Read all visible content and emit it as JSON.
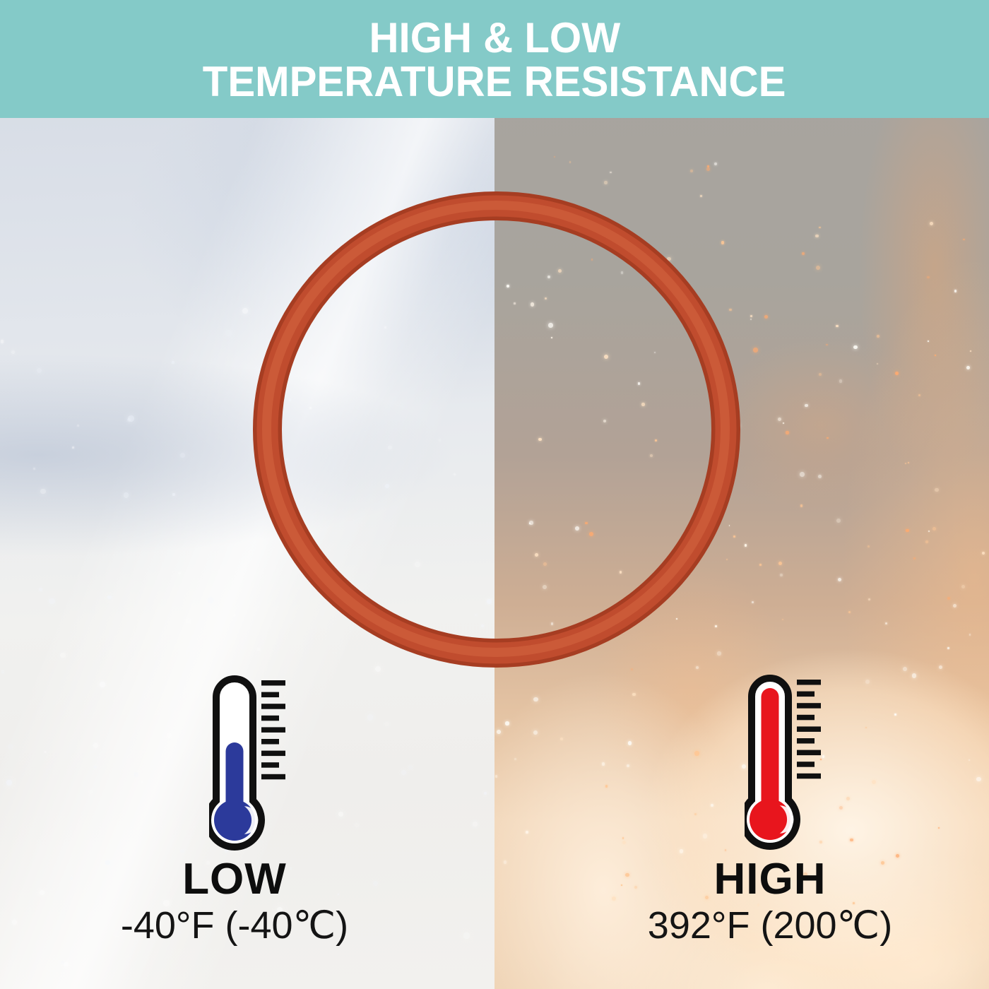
{
  "banner": {
    "line1": "HIGH & LOW",
    "line2": "TEMPERATURE RESISTANCE",
    "bg_color": "#84cac8",
    "text_color": "#ffffff"
  },
  "low_section": {
    "label": "LOW",
    "temperature": "-40°F (-40℃)",
    "mercury_color": "#2c3a9b",
    "icon": "thermometer-low-icon"
  },
  "high_section": {
    "label": "HIGH",
    "temperature": "392°F (200℃)",
    "mercury_color": "#e8151d",
    "icon": "thermometer-high-icon"
  },
  "ring": {
    "name": "red-silicone-o-ring",
    "color": "#c04c2e",
    "edge_color": "#a63d22",
    "highlight_color": "#cb5a38"
  },
  "scene": {
    "left_background": "snow",
    "right_background": "fire"
  }
}
